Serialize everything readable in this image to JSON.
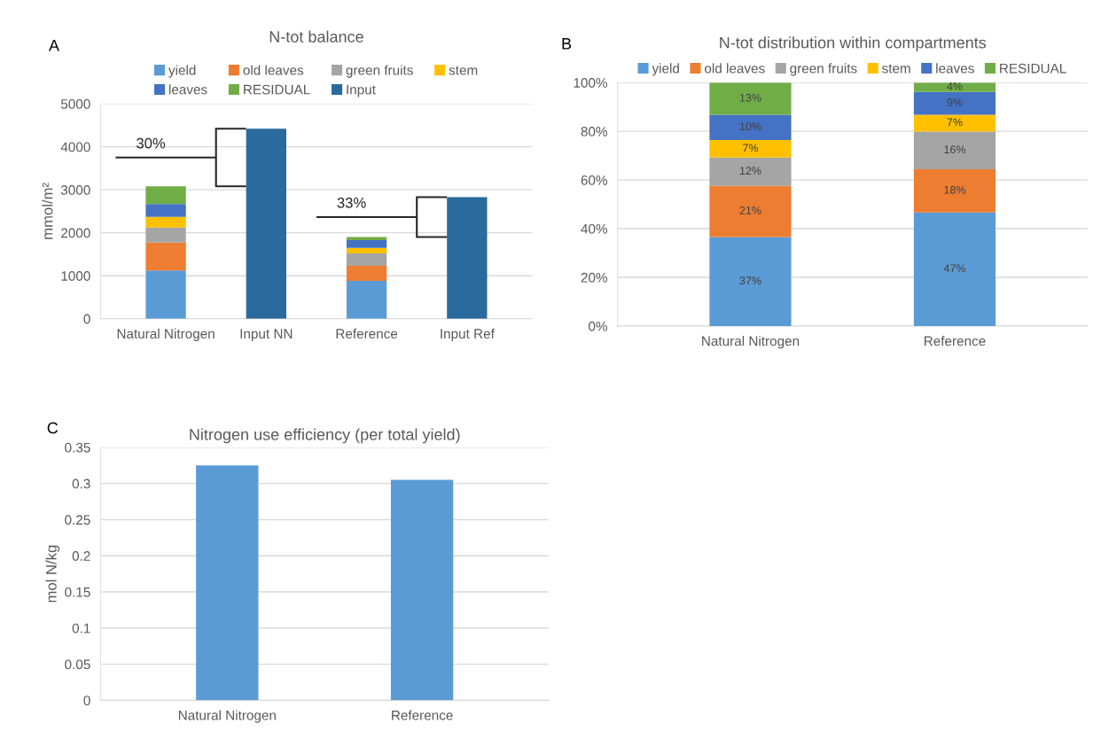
{
  "chart_data": [
    {
      "type": "bar",
      "title": "N-tot balance",
      "ylabel": "mmol/m²",
      "stacked": true,
      "grid": "y",
      "legend": "top",
      "categories": [
        "Natural Nitrogen",
        "Input NN",
        "Reference",
        "Input Ref"
      ],
      "ylim": [
        0,
        5000
      ],
      "yticks": [
        0,
        1000,
        2000,
        3000,
        4000,
        5000
      ],
      "annotations": [
        "A",
        "30%",
        "33%"
      ],
      "series": [
        {
          "name": "yield",
          "color": "#5b9bd5",
          "values": [
            1120,
            null,
            880,
            null
          ]
        },
        {
          "name": "old leaves",
          "color": "#ed7d31",
          "values": [
            650,
            null,
            350,
            null
          ]
        },
        {
          "name": "green fruits",
          "color": "#a5a5a5",
          "values": [
            350,
            null,
            290,
            null
          ]
        },
        {
          "name": "stem",
          "color": "#ffc000",
          "values": [
            250,
            null,
            130,
            null
          ]
        },
        {
          "name": "leaves",
          "color": "#4472c4",
          "values": [
            300,
            null,
            180,
            null
          ]
        },
        {
          "name": "RESIDUAL",
          "color": "#70ad47",
          "values": [
            410,
            null,
            70,
            null
          ]
        },
        {
          "name": "Input",
          "color": "#2a6a9c",
          "values": [
            null,
            4420,
            null,
            2830
          ]
        }
      ]
    },
    {
      "type": "bar",
      "title": "N-tot distribution within compartments",
      "stacked": true,
      "grid": "y",
      "legend": "top",
      "categories": [
        "Natural Nitrogen",
        "Reference"
      ],
      "ylim": [
        0,
        100
      ],
      "yticks": [
        {
          "value": 0,
          "label": "0%"
        },
        {
          "value": 20,
          "label": "20%"
        },
        {
          "value": 40,
          "label": "40%"
        },
        {
          "value": 60,
          "label": "60%"
        },
        {
          "value": 80,
          "label": "80%"
        },
        {
          "value": 100,
          "label": "100%"
        }
      ],
      "annotations": [
        "B"
      ],
      "series": [
        {
          "name": "yield",
          "color": "#5b9bd5",
          "values": [
            36.6,
            46.7
          ],
          "value_labels": [
            "37%",
            "47%"
          ]
        },
        {
          "name": "old leaves",
          "color": "#ed7d31",
          "values": [
            21.0,
            17.7
          ],
          "value_labels": [
            "21%",
            "18%"
          ]
        },
        {
          "name": "green fruits",
          "color": "#a5a5a5",
          "values": [
            11.6,
            15.5
          ],
          "value_labels": [
            "12%",
            "16%"
          ]
        },
        {
          "name": "stem",
          "color": "#ffc000",
          "values": [
            7.2,
            6.9
          ],
          "value_labels": [
            "7%",
            "7%"
          ]
        },
        {
          "name": "leaves",
          "color": "#4472c4",
          "values": [
            10.4,
            9.4
          ],
          "value_labels": [
            "10%",
            "9%"
          ]
        },
        {
          "name": "RESIDUAL",
          "color": "#70ad47",
          "values": [
            13.2,
            3.8
          ],
          "value_labels": [
            "13%",
            "4%"
          ]
        }
      ]
    },
    {
      "type": "bar",
      "title": "Nitrogen use efficiency (per total yield)",
      "ylabel": "mol N/kg",
      "grid": "y",
      "categories": [
        "Natural Nitrogen",
        "Reference"
      ],
      "ylim": [
        0,
        0.35
      ],
      "yticks": [
        0,
        0.05,
        0.1,
        0.15,
        0.2,
        0.25,
        0.3,
        0.35
      ],
      "annotations": [
        "C"
      ],
      "series": [
        {
          "color": "#5b9bd5",
          "values": [
            0.325,
            0.305
          ]
        }
      ]
    }
  ]
}
